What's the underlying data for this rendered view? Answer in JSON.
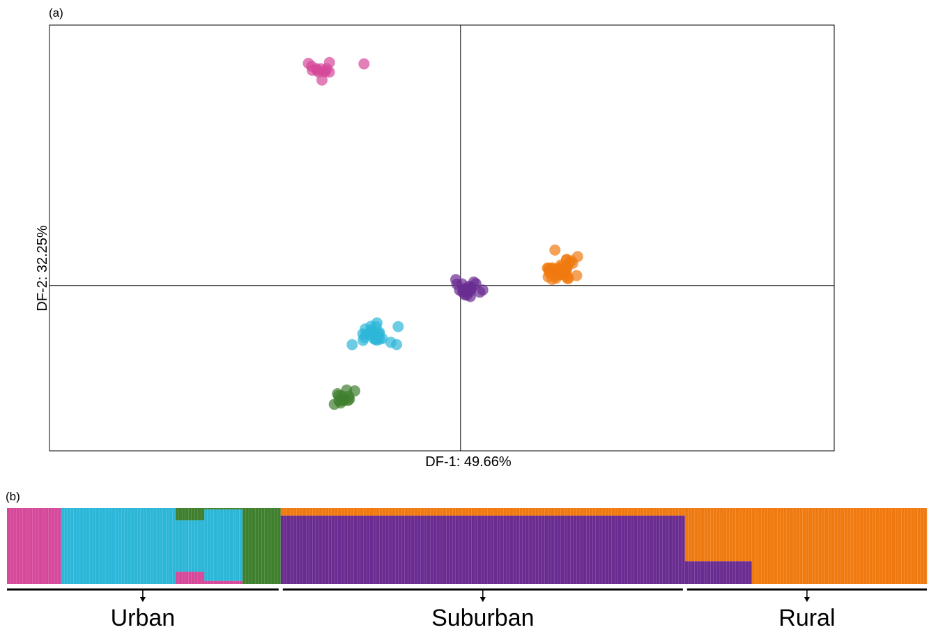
{
  "panel_a_label": "(a)",
  "panel_b_label": "(b)",
  "colors": {
    "magenta": "#d6489a",
    "cyan": "#2cb6d8",
    "green": "#3f7f2e",
    "purple": "#6a2c91",
    "orange": "#f07a10"
  },
  "chart_data": [
    {
      "type": "scatter",
      "xlabel": "DF-1: 49.66%",
      "ylabel": "DF-2: 32.25%",
      "xlim": [
        -6.6,
        6.0
      ],
      "ylim": [
        -4.0,
        6.3
      ],
      "grid": false,
      "legend": "none",
      "reference_lines": {
        "x": 0,
        "y": 0
      },
      "clusters": [
        {
          "color": "magenta",
          "center": [
            -2.25,
            5.3
          ],
          "spread": 0.18,
          "n": 14
        },
        {
          "color": "purple",
          "center": [
            0.13,
            -0.12
          ],
          "spread": 0.1,
          "n": 22
        },
        {
          "color": "orange",
          "center": [
            1.6,
            0.38
          ],
          "spread": 0.16,
          "n": 40
        },
        {
          "color": "cyan",
          "center": [
            -1.42,
            -1.2
          ],
          "spread": 0.17,
          "n": 28
        },
        {
          "color": "green",
          "center": [
            -1.93,
            -2.75
          ],
          "spread": 0.12,
          "n": 13
        }
      ]
    },
    {
      "type": "bar",
      "stacked": true,
      "ylim": [
        0,
        1
      ],
      "groups": [
        {
          "label": "Urban",
          "n": 86
        },
        {
          "label": "Suburban",
          "n": 127
        },
        {
          "label": "Rural",
          "n": 76
        }
      ],
      "segments": [
        {
          "color": "magenta",
          "n": 17,
          "values": {
            "magenta": 1.0
          }
        },
        {
          "color": "cyan",
          "n": 36,
          "values": {
            "cyan": 1.0
          }
        },
        {
          "color": "cyan",
          "n": 9,
          "values": {
            "cyan": 0.68,
            "magenta": 0.16,
            "green": 0.16
          }
        },
        {
          "color": "cyan",
          "n": 12,
          "values": {
            "cyan": 0.94,
            "magenta": 0.04,
            "green": 0.02
          }
        },
        {
          "color": "green",
          "n": 12,
          "values": {
            "green": 1.0
          }
        },
        {
          "color": "purple",
          "n": 127,
          "values": {
            "purple": 0.9,
            "orange": 0.1
          }
        },
        {
          "color": "purple",
          "n": 21,
          "values": {
            "purple": 0.3,
            "orange": 0.7
          }
        },
        {
          "color": "orange",
          "n": 55,
          "values": {
            "orange": 1.0
          }
        }
      ]
    }
  ]
}
